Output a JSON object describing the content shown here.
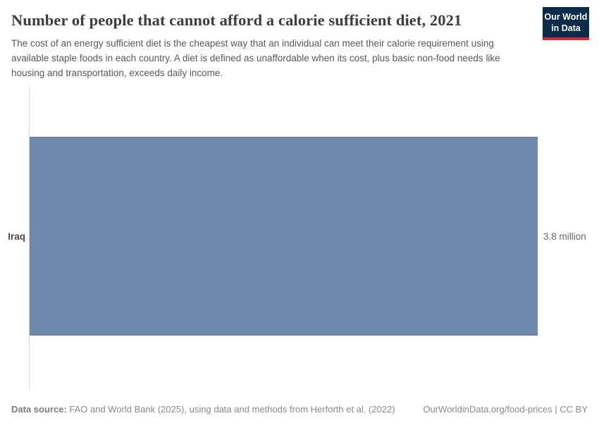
{
  "header": {
    "title": "Number of people that cannot afford a calorie sufficient diet, 2021",
    "subtitle": "The cost of an energy sufficient diet is the cheapest way that an individual can meet their calorie requirement using available staple foods in each country. A diet is defined as unaffordable when its cost, plus basic non-food needs like housing and transportation, exceeds daily income.",
    "logo": {
      "line1": "Our World",
      "line2": "in Data",
      "bg_color": "#0b2b4b",
      "accent_color": "#d7282f"
    }
  },
  "chart_data": {
    "type": "bar",
    "orientation": "horizontal",
    "title": "Number of people that cannot afford a calorie sufficient diet, 2021",
    "categories": [
      "Iraq"
    ],
    "values": [
      3.8
    ],
    "unit": "million",
    "value_labels": [
      "3.8 million"
    ],
    "xlabel": "",
    "ylabel": "",
    "xlim": [
      0,
      3.8
    ],
    "grid": false,
    "legend": "none",
    "bar_color": "#7188ad"
  },
  "footer": {
    "source_label": "Data source:",
    "source_text": " FAO and World Bank (2025), using data and methods from Herforth et al. (2022)",
    "link_text": "OurWorldinData.org/food-prices | CC BY"
  }
}
